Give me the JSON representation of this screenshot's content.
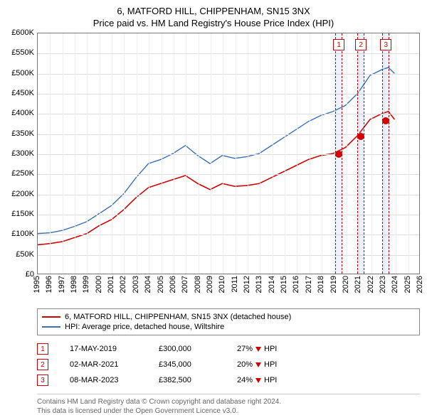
{
  "title": "6, MATFORD HILL, CHIPPENHAM, SN15 3NX",
  "subtitle": "Price paid vs. HM Land Registry's House Price Index (HPI)",
  "chart": {
    "type": "line",
    "xlim": [
      1995,
      2026
    ],
    "ylim": [
      0,
      600000
    ],
    "ytick_step": 50000,
    "y_prefix": "£",
    "y_suffix": "K",
    "x_ticks": [
      1995,
      1996,
      1997,
      1998,
      1999,
      2000,
      2001,
      2002,
      2003,
      2004,
      2005,
      2006,
      2007,
      2008,
      2009,
      2010,
      2011,
      2012,
      2013,
      2014,
      2015,
      2016,
      2017,
      2018,
      2019,
      2020,
      2021,
      2022,
      2023,
      2024,
      2025,
      2026
    ],
    "background_color": "#ffffff",
    "grid_color": "#dddddd",
    "series": [
      {
        "name": "6, MATFORD HILL, CHIPPENHAM, SN15 3NX (detached house)",
        "color": "#d40000",
        "line_width": 1.6,
        "data": [
          [
            1995,
            72000
          ],
          [
            1996,
            75000
          ],
          [
            1997,
            80000
          ],
          [
            1998,
            90000
          ],
          [
            1999,
            100000
          ],
          [
            2000,
            120000
          ],
          [
            2001,
            135000
          ],
          [
            2002,
            160000
          ],
          [
            2003,
            190000
          ],
          [
            2004,
            215000
          ],
          [
            2005,
            225000
          ],
          [
            2006,
            235000
          ],
          [
            2007,
            245000
          ],
          [
            2008,
            225000
          ],
          [
            2009,
            210000
          ],
          [
            2010,
            225000
          ],
          [
            2011,
            218000
          ],
          [
            2012,
            220000
          ],
          [
            2013,
            225000
          ],
          [
            2014,
            240000
          ],
          [
            2015,
            255000
          ],
          [
            2016,
            270000
          ],
          [
            2017,
            285000
          ],
          [
            2018,
            295000
          ],
          [
            2019,
            300000
          ],
          [
            2020,
            315000
          ],
          [
            2021,
            345000
          ],
          [
            2022,
            385000
          ],
          [
            2023,
            400000
          ],
          [
            2023.5,
            405000
          ],
          [
            2024,
            385000
          ]
        ]
      },
      {
        "name": "HPI: Average price, detached house, Wiltshire",
        "color": "#3a6fb7",
        "line_width": 1.4,
        "data": [
          [
            1995,
            100000
          ],
          [
            1996,
            102000
          ],
          [
            1997,
            108000
          ],
          [
            1998,
            118000
          ],
          [
            1999,
            130000
          ],
          [
            2000,
            150000
          ],
          [
            2001,
            170000
          ],
          [
            2002,
            200000
          ],
          [
            2003,
            240000
          ],
          [
            2004,
            275000
          ],
          [
            2005,
            285000
          ],
          [
            2006,
            300000
          ],
          [
            2007,
            320000
          ],
          [
            2008,
            295000
          ],
          [
            2009,
            275000
          ],
          [
            2010,
            295000
          ],
          [
            2011,
            288000
          ],
          [
            2012,
            292000
          ],
          [
            2013,
            300000
          ],
          [
            2014,
            320000
          ],
          [
            2015,
            340000
          ],
          [
            2016,
            360000
          ],
          [
            2017,
            380000
          ],
          [
            2018,
            395000
          ],
          [
            2019,
            405000
          ],
          [
            2020,
            420000
          ],
          [
            2021,
            450000
          ],
          [
            2022,
            495000
          ],
          [
            2023,
            510000
          ],
          [
            2023.5,
            515000
          ],
          [
            2024,
            500000
          ]
        ]
      }
    ],
    "events": [
      {
        "num": "1",
        "x": 2019.38,
        "date": "17-MAY-2019",
        "price": "£300,000",
        "price_val": 300000,
        "diff": "27%",
        "dir": "down",
        "vs": "HPI"
      },
      {
        "num": "2",
        "x": 2021.17,
        "date": "02-MAR-2021",
        "price": "£345,000",
        "price_val": 345000,
        "diff": "20%",
        "dir": "down",
        "vs": "HPI"
      },
      {
        "num": "3",
        "x": 2023.19,
        "date": "08-MAR-2023",
        "price": "£382,500",
        "price_val": 382500,
        "diff": "24%",
        "dir": "down",
        "vs": "HPI"
      }
    ],
    "event_band_width_years": 0.6,
    "event_band_color": "rgba(100,150,220,0.12)",
    "event_border_color": "#cc0000",
    "marker_color": "#d40000",
    "marker_size": 10
  },
  "footer": {
    "line1": "Contains HM Land Registry data © Crown copyright and database right 2024.",
    "line2": "This data is licensed under the Open Government Licence v3.0."
  }
}
